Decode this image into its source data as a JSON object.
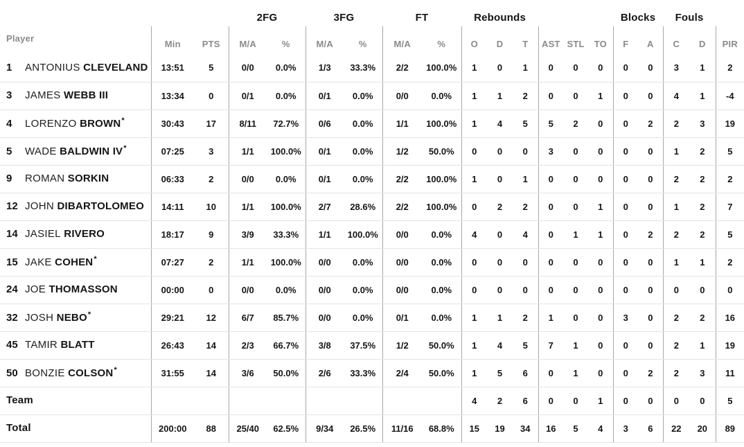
{
  "table": {
    "player_col_header": "Player",
    "starter_mark": "*",
    "group_headers": {
      "fg2": "2FG",
      "fg3": "3FG",
      "ft": "FT",
      "rebounds": "Rebounds",
      "blocks": "Blocks",
      "fouls": "Fouls"
    },
    "column_headers": [
      "Min",
      "PTS",
      "M/A",
      "%",
      "M/A",
      "%",
      "M/A",
      "%",
      "O",
      "D",
      "T",
      "AST",
      "STL",
      "TO",
      "F",
      "A",
      "C",
      "D",
      "PIR"
    ],
    "rows": [
      {
        "num": "1",
        "first": "ANTONIUS",
        "last": "CLEVELAND",
        "starter": false,
        "cells": [
          "13:51",
          "5",
          "0/0",
          "0.0%",
          "1/3",
          "33.3%",
          "2/2",
          "100.0%",
          "1",
          "0",
          "1",
          "0",
          "0",
          "0",
          "0",
          "0",
          "3",
          "1",
          "2"
        ]
      },
      {
        "num": "3",
        "first": "JAMES",
        "last": "WEBB III",
        "starter": false,
        "cells": [
          "13:34",
          "0",
          "0/1",
          "0.0%",
          "0/1",
          "0.0%",
          "0/0",
          "0.0%",
          "1",
          "1",
          "2",
          "0",
          "0",
          "1",
          "0",
          "0",
          "4",
          "1",
          "-4"
        ]
      },
      {
        "num": "4",
        "first": "LORENZO",
        "last": "BROWN",
        "starter": true,
        "cells": [
          "30:43",
          "17",
          "8/11",
          "72.7%",
          "0/6",
          "0.0%",
          "1/1",
          "100.0%",
          "1",
          "4",
          "5",
          "5",
          "2",
          "0",
          "0",
          "2",
          "2",
          "3",
          "19"
        ]
      },
      {
        "num": "5",
        "first": "WADE",
        "last": "BALDWIN IV",
        "starter": true,
        "cells": [
          "07:25",
          "3",
          "1/1",
          "100.0%",
          "0/1",
          "0.0%",
          "1/2",
          "50.0%",
          "0",
          "0",
          "0",
          "3",
          "0",
          "0",
          "0",
          "0",
          "1",
          "2",
          "5"
        ]
      },
      {
        "num": "9",
        "first": "ROMAN",
        "last": "SORKIN",
        "starter": false,
        "cells": [
          "06:33",
          "2",
          "0/0",
          "0.0%",
          "0/1",
          "0.0%",
          "2/2",
          "100.0%",
          "1",
          "0",
          "1",
          "0",
          "0",
          "0",
          "0",
          "0",
          "2",
          "2",
          "2"
        ]
      },
      {
        "num": "12",
        "first": "JOHN",
        "last": "DIBARTOLOMEO",
        "starter": false,
        "cells": [
          "14:11",
          "10",
          "1/1",
          "100.0%",
          "2/7",
          "28.6%",
          "2/2",
          "100.0%",
          "0",
          "2",
          "2",
          "0",
          "0",
          "1",
          "0",
          "0",
          "1",
          "2",
          "7"
        ]
      },
      {
        "num": "14",
        "first": "JASIEL",
        "last": "RIVERO",
        "starter": false,
        "cells": [
          "18:17",
          "9",
          "3/9",
          "33.3%",
          "1/1",
          "100.0%",
          "0/0",
          "0.0%",
          "4",
          "0",
          "4",
          "0",
          "1",
          "1",
          "0",
          "2",
          "2",
          "2",
          "5"
        ]
      },
      {
        "num": "15",
        "first": "JAKE",
        "last": "COHEN",
        "starter": true,
        "cells": [
          "07:27",
          "2",
          "1/1",
          "100.0%",
          "0/0",
          "0.0%",
          "0/0",
          "0.0%",
          "0",
          "0",
          "0",
          "0",
          "0",
          "0",
          "0",
          "0",
          "1",
          "1",
          "2"
        ]
      },
      {
        "num": "24",
        "first": "JOE",
        "last": "THOMASSON",
        "starter": false,
        "cells": [
          "00:00",
          "0",
          "0/0",
          "0.0%",
          "0/0",
          "0.0%",
          "0/0",
          "0.0%",
          "0",
          "0",
          "0",
          "0",
          "0",
          "0",
          "0",
          "0",
          "0",
          "0",
          "0"
        ]
      },
      {
        "num": "32",
        "first": "JOSH",
        "last": "NEBO",
        "starter": true,
        "cells": [
          "29:21",
          "12",
          "6/7",
          "85.7%",
          "0/0",
          "0.0%",
          "0/1",
          "0.0%",
          "1",
          "1",
          "2",
          "1",
          "0",
          "0",
          "3",
          "0",
          "2",
          "2",
          "16"
        ]
      },
      {
        "num": "45",
        "first": "TAMIR",
        "last": "BLATT",
        "starter": false,
        "cells": [
          "26:43",
          "14",
          "2/3",
          "66.7%",
          "3/8",
          "37.5%",
          "1/2",
          "50.0%",
          "1",
          "4",
          "5",
          "7",
          "1",
          "0",
          "0",
          "0",
          "2",
          "1",
          "19"
        ]
      },
      {
        "num": "50",
        "first": "BONZIE",
        "last": "COLSON",
        "starter": true,
        "cells": [
          "31:55",
          "14",
          "3/6",
          "50.0%",
          "2/6",
          "33.3%",
          "2/4",
          "50.0%",
          "1",
          "5",
          "6",
          "0",
          "1",
          "0",
          "0",
          "2",
          "2",
          "3",
          "11"
        ]
      },
      {
        "label": "Team",
        "cells": [
          "",
          "",
          "",
          "",
          "",
          "",
          "",
          "",
          "4",
          "2",
          "6",
          "0",
          "0",
          "1",
          "0",
          "0",
          "0",
          "0",
          "5"
        ]
      },
      {
        "label": "Total",
        "cells": [
          "200:00",
          "88",
          "25/40",
          "62.5%",
          "9/34",
          "26.5%",
          "11/16",
          "68.8%",
          "15",
          "19",
          "34",
          "16",
          "5",
          "4",
          "3",
          "6",
          "22",
          "20",
          "89"
        ]
      }
    ]
  },
  "colors": {
    "text_dark": "#141414",
    "text_gray": "#8a8a8a",
    "column_line": "#a6a6a6",
    "row_line": "#e3e3e3",
    "background": "#ffffff"
  }
}
